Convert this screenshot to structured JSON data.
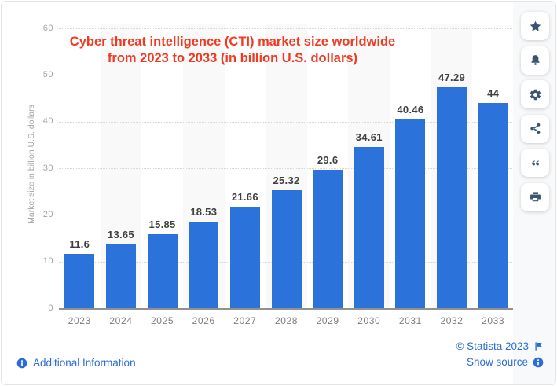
{
  "colors": {
    "bar": "#2b72da",
    "title": "#f23a21",
    "link": "#2b6cd8",
    "sidebar_icon": "#3a5472",
    "band": "#f9f9fa"
  },
  "chart_data": {
    "type": "bar",
    "title": "Cyber threat intelligence (CTI) market size worldwide from 2023 to 2033 (in billion U.S. dollars)",
    "title_lines": [
      "Cyber threat intelligence (CTI) market size worldwide",
      "from 2023 to 2033 (in billion U.S. dollars)"
    ],
    "categories": [
      "2023",
      "2024",
      "2025",
      "2026",
      "2027",
      "2028",
      "2029",
      "2030",
      "2031",
      "2032",
      "2033"
    ],
    "values": [
      11.6,
      13.65,
      15.85,
      18.53,
      21.66,
      25.32,
      29.6,
      34.61,
      40.46,
      47.29,
      44
    ],
    "value_labels": [
      "11.6",
      "13.65",
      "15.85",
      "18.53",
      "21.66",
      "25.32",
      "29.6",
      "34.61",
      "40.46",
      "47.29",
      "44"
    ],
    "xlabel": "",
    "ylabel": "Market size in billion U.S. dollars",
    "yticks": [
      0,
      10,
      20,
      30,
      40,
      50,
      60
    ],
    "ylim": [
      0,
      60
    ],
    "grid": true,
    "legend_position": "none",
    "alternating_column_bands": true
  },
  "sidebar": {
    "buttons": [
      {
        "name": "favorite",
        "icon": "star-icon"
      },
      {
        "name": "notifications",
        "icon": "bell-icon"
      },
      {
        "name": "settings",
        "icon": "gear-icon"
      },
      {
        "name": "share",
        "icon": "share-icon"
      },
      {
        "name": "cite",
        "icon": "quote-icon"
      },
      {
        "name": "print",
        "icon": "printer-icon"
      }
    ]
  },
  "footer": {
    "additional_info": "Additional Information",
    "copyright": "© Statista 2023",
    "show_source": "Show source"
  }
}
